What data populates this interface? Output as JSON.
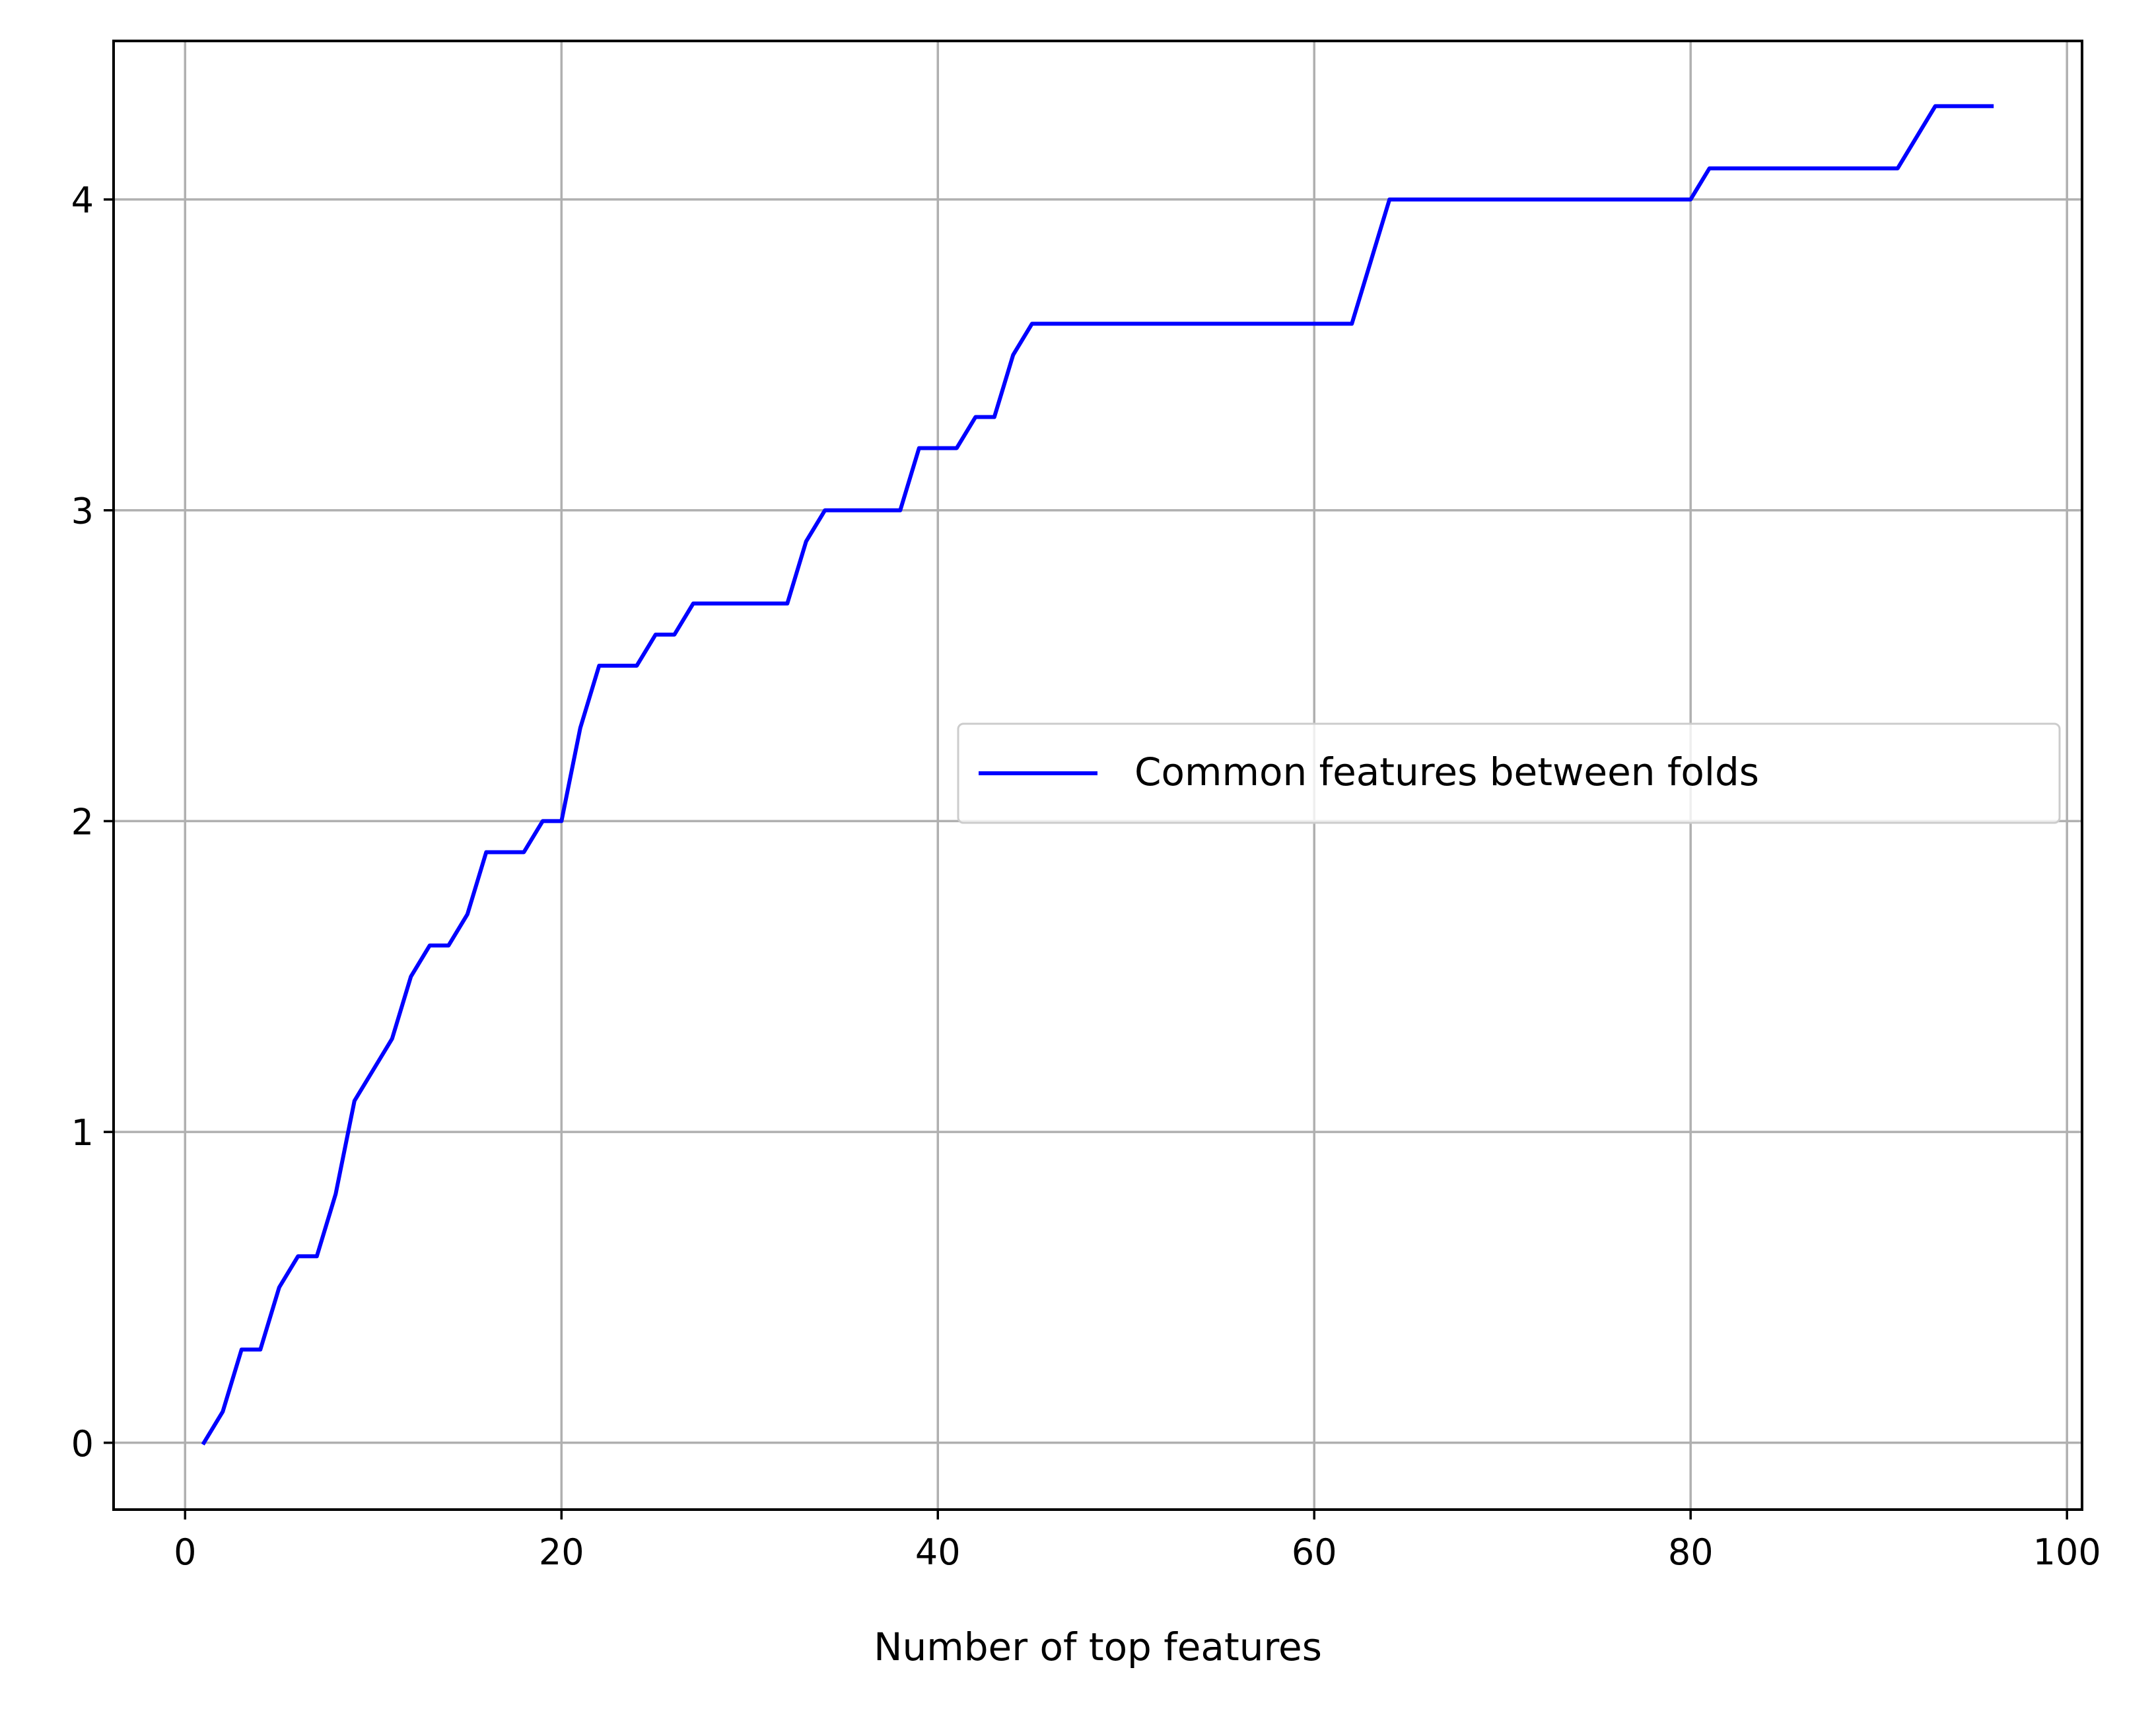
{
  "chart_data": {
    "type": "line",
    "title": "",
    "xlabel": "Number of top features",
    "ylabel": "",
    "xlim": [
      -3.8,
      100.8
    ],
    "ylim": [
      -0.215,
      4.51
    ],
    "xticks": [
      0,
      20,
      40,
      60,
      80,
      100
    ],
    "yticks": [
      0,
      1,
      2,
      3,
      4
    ],
    "grid": true,
    "legend_position": "center-right",
    "series": [
      {
        "name": "Common features between folds",
        "color": "#0000ff",
        "x": [
          1,
          2,
          3,
          4,
          5,
          6,
          7,
          8,
          9,
          10,
          11,
          12,
          13,
          14,
          15,
          16,
          17,
          18,
          19,
          20,
          21,
          22,
          23,
          24,
          25,
          26,
          27,
          28,
          29,
          30,
          31,
          32,
          33,
          34,
          35,
          36,
          37,
          38,
          39,
          40,
          41,
          42,
          43,
          44,
          45,
          46,
          47,
          48,
          49,
          50,
          51,
          52,
          53,
          54,
          55,
          56,
          57,
          58,
          59,
          60,
          61,
          62,
          63,
          64,
          65,
          66,
          67,
          68,
          69,
          70,
          71,
          72,
          73,
          74,
          75,
          76,
          77,
          78,
          79,
          80,
          81,
          82,
          83,
          84,
          85,
          86,
          87,
          88,
          89,
          90,
          91,
          92,
          93,
          94,
          95,
          96
        ],
        "y": [
          0,
          0.1,
          0.3,
          0.3,
          0.5,
          0.6,
          0.6,
          0.8,
          1.1,
          1.2,
          1.3,
          1.5,
          1.6,
          1.6,
          1.7,
          1.9,
          1.9,
          1.9,
          2.0,
          2.0,
          2.3,
          2.5,
          2.5,
          2.5,
          2.6,
          2.6,
          2.7,
          2.7,
          2.7,
          2.7,
          2.7,
          2.7,
          2.9,
          3.0,
          3.0,
          3.0,
          3.0,
          3.0,
          3.2,
          3.2,
          3.2,
          3.3,
          3.3,
          3.5,
          3.6,
          3.6,
          3.6,
          3.6,
          3.6,
          3.6,
          3.6,
          3.6,
          3.6,
          3.6,
          3.6,
          3.6,
          3.6,
          3.6,
          3.6,
          3.6,
          3.6,
          3.6,
          3.8,
          4.0,
          4.0,
          4.0,
          4.0,
          4.0,
          4.0,
          4.0,
          4.0,
          4.0,
          4.0,
          4.0,
          4.0,
          4.0,
          4.0,
          4.0,
          4.0,
          4.0,
          4.1,
          4.1,
          4.1,
          4.1,
          4.1,
          4.1,
          4.1,
          4.1,
          4.1,
          4.1,
          4.1,
          4.2,
          4.3,
          4.3,
          4.3,
          4.3
        ]
      }
    ]
  }
}
